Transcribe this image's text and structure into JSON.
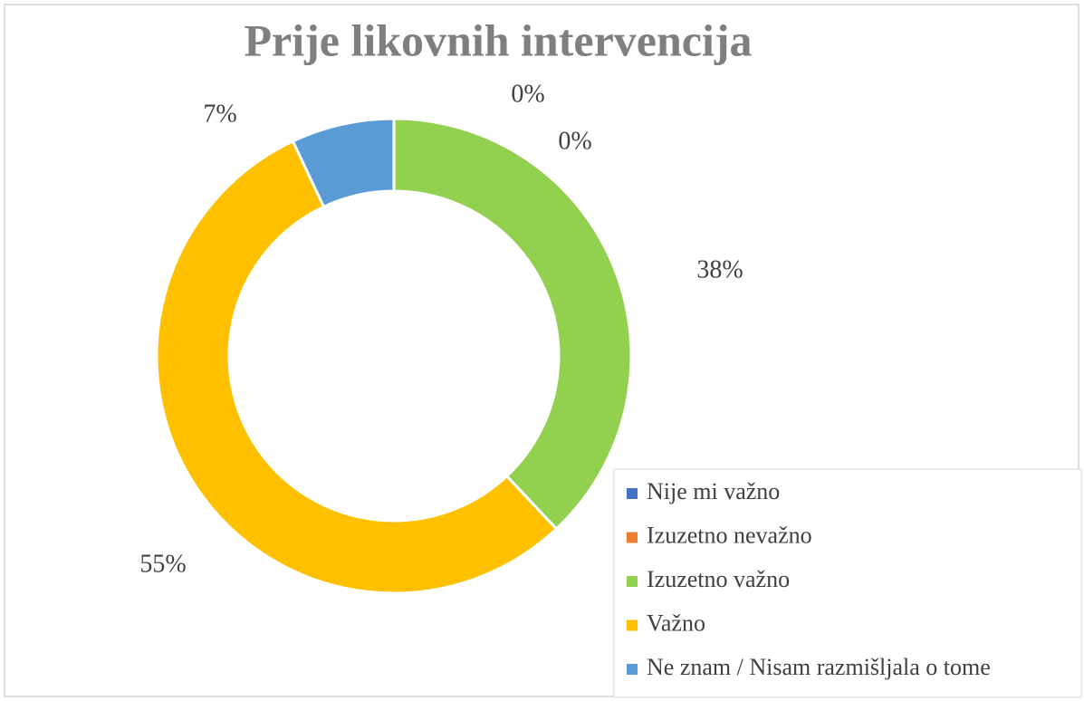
{
  "chart_data": {
    "type": "donut",
    "title": "Prije likovnih intervencija",
    "categories": [
      "Nije mi važno",
      "Izuzetno nevažno",
      "Izuzetno važno",
      "Važno",
      "Ne znam / Nisam razmišljala o tome"
    ],
    "values": [
      0,
      0,
      38,
      55,
      7
    ],
    "value_labels": [
      "0%",
      "0%",
      "38%",
      "55%",
      "7%"
    ],
    "colors": [
      "#4472c4",
      "#ed7d31",
      "#92d050",
      "#ffc000",
      "#5b9bd5"
    ],
    "legend": "right"
  }
}
